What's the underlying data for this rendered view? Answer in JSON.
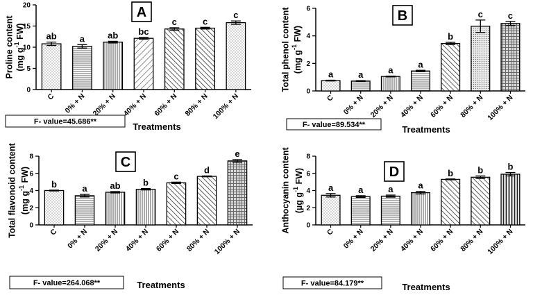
{
  "chart_data": [
    {
      "type": "bar",
      "panel": "A",
      "title": "A",
      "ylabel_line1": "Proline content",
      "ylabel_line2": "(mg g",
      "ylabel_sup": "-1",
      "ylabel_tail": " FW)",
      "xlabel": "Treatments",
      "categories": [
        "C",
        "0% + N",
        "20% + N",
        "40% + N",
        "60% + N",
        "80% + N",
        "100% + N"
      ],
      "values": [
        10.8,
        10.2,
        11.2,
        12.1,
        14.3,
        14.5,
        15.8
      ],
      "errors": [
        0.4,
        0.4,
        0.2,
        0.2,
        0.3,
        0.2,
        0.4
      ],
      "letters": [
        "ab",
        "a",
        "ab",
        "bc",
        "c",
        "c",
        "c"
      ],
      "ylim": [
        0,
        20
      ],
      "yticks": [
        0,
        5,
        10,
        15,
        20
      ],
      "f_value": "F- value=45.686**"
    },
    {
      "type": "bar",
      "panel": "B",
      "title": "B",
      "ylabel_line1": "Total phenol content",
      "ylabel_line2": "(mg g",
      "ylabel_sup": "-1",
      "ylabel_tail": " FW)",
      "xlabel": "Treatments",
      "categories": [
        "C",
        "0% + N",
        "20% + N",
        "40% + N",
        "60% + N",
        "80% + N",
        "100% + N"
      ],
      "values": [
        0.75,
        0.72,
        1.05,
        1.45,
        3.45,
        4.7,
        4.9
      ],
      "errors": [
        0.03,
        0.03,
        0.03,
        0.05,
        0.08,
        0.45,
        0.15
      ],
      "letters": [
        "a",
        "a",
        "a",
        "a",
        "b",
        "c",
        "c"
      ],
      "ylim": [
        0,
        6
      ],
      "yticks": [
        0,
        2,
        4,
        6
      ],
      "f_value": "F- value=89.534**"
    },
    {
      "type": "bar",
      "panel": "C",
      "title": "C",
      "ylabel_line1": "Total flavonoid content",
      "ylabel_line2": "(mg g",
      "ylabel_sup": "-1",
      "ylabel_tail": " FW)",
      "xlabel": "Treatments",
      "categories": [
        "C",
        "0% + N",
        "20% + N",
        "40% + N",
        "60% + N",
        "80% + N",
        "100% + N"
      ],
      "values": [
        4.0,
        3.4,
        3.8,
        4.15,
        4.9,
        5.65,
        7.45
      ],
      "errors": [
        0.05,
        0.15,
        0.08,
        0.08,
        0.08,
        0.05,
        0.15
      ],
      "letters": [
        "b",
        "a",
        "ab",
        "b",
        "c",
        "d",
        "e"
      ],
      "ylim": [
        0,
        8
      ],
      "yticks": [
        0,
        2,
        4,
        6,
        8
      ],
      "f_value": "F- value=264.068**"
    },
    {
      "type": "bar",
      "panel": "D",
      "title": "D",
      "ylabel_line1": "Anthocyanin content",
      "ylabel_line2": "(µg g",
      "ylabel_sup": "-1",
      "ylabel_tail": " FW)",
      "xlabel": "Treatments",
      "categories": [
        "C",
        "0% + N",
        "20% + N",
        "40% + N",
        "60% + N",
        "80% + N",
        "100% + N"
      ],
      "values": [
        3.45,
        3.3,
        3.35,
        3.75,
        5.3,
        5.55,
        5.9
      ],
      "errors": [
        0.2,
        0.1,
        0.12,
        0.15,
        0.05,
        0.15,
        0.2
      ],
      "letters": [
        "a",
        "a",
        "a",
        "a",
        "b",
        "b",
        "b"
      ],
      "ylim": [
        0,
        8
      ],
      "yticks": [
        0,
        2,
        4,
        6,
        8
      ],
      "f_value": "F- value=84.179**"
    }
  ]
}
